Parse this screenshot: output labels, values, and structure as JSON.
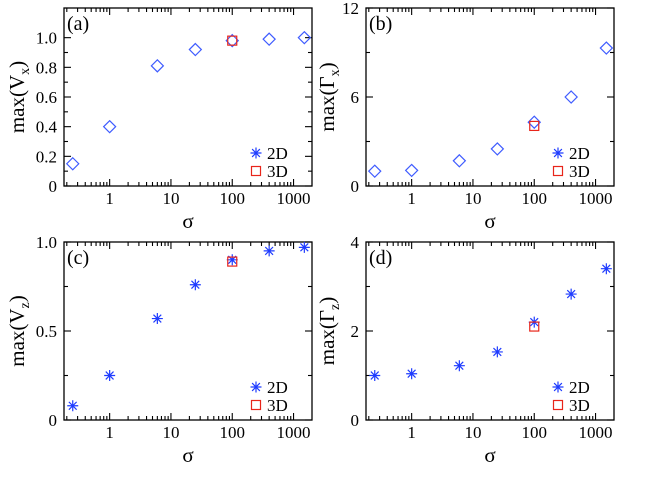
{
  "figure": {
    "colors": {
      "series_2d": "#1f3cff",
      "series_3d": "#e8251a",
      "diamond": "#3f5cff",
      "axis": "#000000"
    }
  },
  "chart_data": [
    {
      "type": "scatter",
      "panel_label": "(a)",
      "xlabel": "σ",
      "ylabel_base": "max(V",
      "ylabel_sub": "x",
      "ylabel_close": ")",
      "xscale": "log",
      "xlim": [
        0.18,
        2000
      ],
      "ylim": [
        0,
        1.2
      ],
      "xticks": [
        1,
        10,
        100,
        1000
      ],
      "xtick_labels": [
        "1",
        "10",
        "100",
        "1000"
      ],
      "yticks": [
        0,
        0.2,
        0.4,
        0.6,
        0.8,
        1.0
      ],
      "ytick_labels": [
        "0",
        "0.2",
        "0.4",
        "0.6",
        "0.8",
        "1.0"
      ],
      "legend": {
        "position": "bottom-right",
        "entries": [
          "2D",
          "3D"
        ]
      },
      "series": [
        {
          "name": "2D",
          "marker": "diamond",
          "x": [
            0.25,
            1,
            6,
            25,
            100,
            400,
            1500
          ],
          "y": [
            0.15,
            0.4,
            0.81,
            0.92,
            0.98,
            0.99,
            1.0
          ]
        },
        {
          "name": "3D",
          "marker": "square",
          "x": [
            100
          ],
          "y": [
            0.98
          ]
        }
      ]
    },
    {
      "type": "scatter",
      "panel_label": "(b)",
      "xlabel": "σ",
      "ylabel_base": "max(Γ",
      "ylabel_sub": "x",
      "ylabel_close": ")",
      "xscale": "log",
      "xlim": [
        0.18,
        2000
      ],
      "ylim": [
        0,
        12
      ],
      "xticks": [
        1,
        10,
        100,
        1000
      ],
      "xtick_labels": [
        "1",
        "10",
        "100",
        "1000"
      ],
      "yticks": [
        0,
        6,
        12
      ],
      "ytick_labels": [
        "0",
        "6",
        "12"
      ],
      "legend": {
        "position": "bottom-right",
        "entries": [
          "2D",
          "3D"
        ]
      },
      "series": [
        {
          "name": "2D",
          "marker": "diamond",
          "x": [
            0.25,
            1,
            6,
            25,
            100,
            400,
            1500
          ],
          "y": [
            1.0,
            1.05,
            1.7,
            2.5,
            4.3,
            6.0,
            9.3
          ]
        },
        {
          "name": "3D",
          "marker": "square",
          "x": [
            100
          ],
          "y": [
            4.05
          ]
        }
      ]
    },
    {
      "type": "scatter",
      "panel_label": "(c)",
      "xlabel": "σ",
      "ylabel_base": "max(V",
      "ylabel_sub": "z",
      "ylabel_close": ")",
      "xscale": "log",
      "xlim": [
        0.18,
        2000
      ],
      "ylim": [
        0,
        1.0
      ],
      "xticks": [
        1,
        10,
        100,
        1000
      ],
      "xtick_labels": [
        "1",
        "10",
        "100",
        "1000"
      ],
      "yticks": [
        0,
        0.5,
        1.0
      ],
      "ytick_labels": [
        "0",
        "0.5",
        "1.0"
      ],
      "legend": {
        "position": "bottom-right",
        "entries": [
          "2D",
          "3D"
        ]
      },
      "series": [
        {
          "name": "2D",
          "marker": "asterisk",
          "x": [
            0.25,
            1,
            6,
            25,
            100,
            400,
            1500
          ],
          "y": [
            0.08,
            0.25,
            0.57,
            0.76,
            0.9,
            0.95,
            0.97
          ]
        },
        {
          "name": "3D",
          "marker": "square",
          "x": [
            100
          ],
          "y": [
            0.89
          ]
        }
      ]
    },
    {
      "type": "scatter",
      "panel_label": "(d)",
      "xlabel": "σ",
      "ylabel_base": "max(Γ",
      "ylabel_sub": "z",
      "ylabel_close": ")",
      "xscale": "log",
      "xlim": [
        0.18,
        2000
      ],
      "ylim": [
        0,
        4
      ],
      "xticks": [
        1,
        10,
        100,
        1000
      ],
      "xtick_labels": [
        "1",
        "10",
        "100",
        "1000"
      ],
      "yticks": [
        0,
        2,
        4
      ],
      "ytick_labels": [
        "0",
        "2",
        "4"
      ],
      "legend": {
        "position": "bottom-right",
        "entries": [
          "2D",
          "3D"
        ]
      },
      "series": [
        {
          "name": "2D",
          "marker": "asterisk",
          "x": [
            0.25,
            1,
            6,
            25,
            100,
            400,
            1500
          ],
          "y": [
            1.0,
            1.04,
            1.22,
            1.53,
            2.2,
            2.83,
            3.4
          ]
        },
        {
          "name": "3D",
          "marker": "square",
          "x": [
            100
          ],
          "y": [
            2.1
          ]
        }
      ]
    }
  ]
}
